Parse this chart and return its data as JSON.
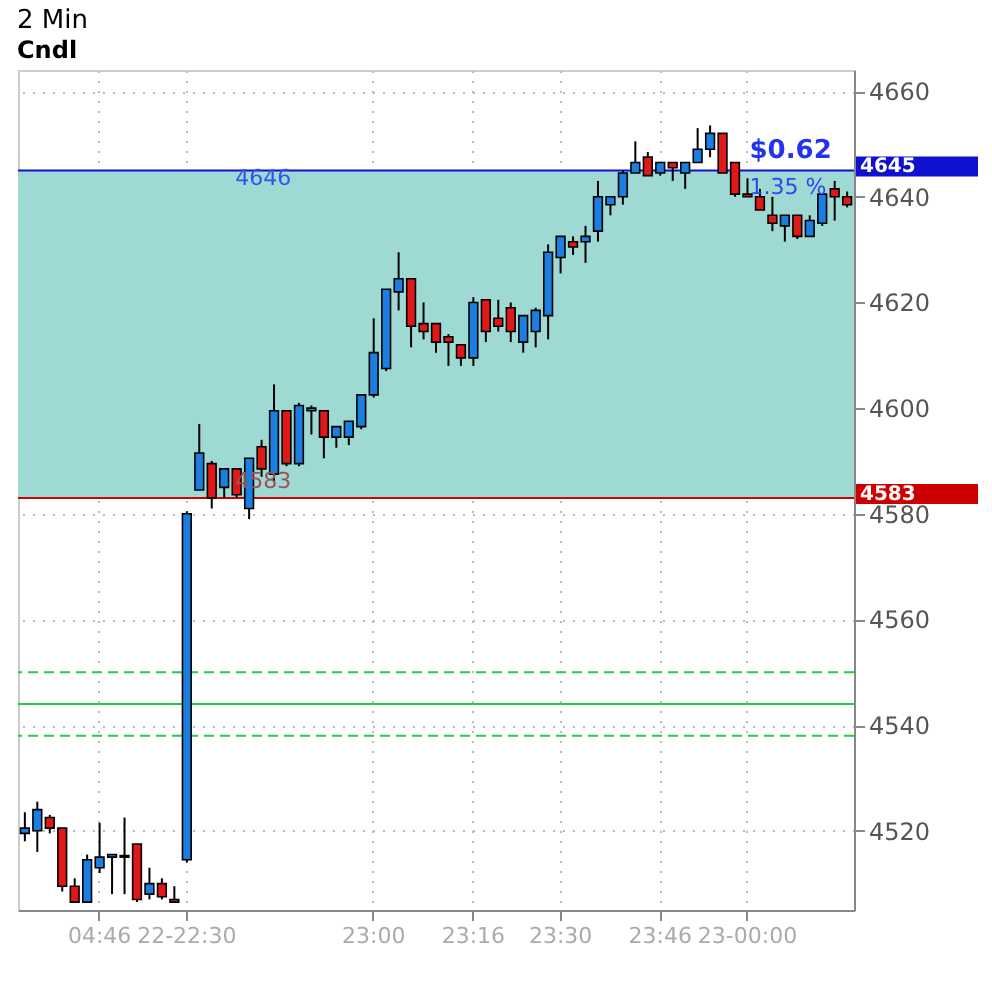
{
  "chart_data": {
    "type": "candlestick",
    "title": "2 Min",
    "subtitle": "Cndl",
    "categories": [
      null,
      null,
      null,
      null,
      null,
      null,
      "04:46",
      null,
      null,
      null,
      null,
      null,
      null,
      "22-22:30",
      null,
      null,
      null,
      null,
      null,
      null,
      null,
      null,
      null,
      null,
      null,
      null,
      null,
      null,
      "23:00",
      null,
      null,
      null,
      null,
      null,
      null,
      null,
      "23:16",
      null,
      null,
      null,
      null,
      null,
      null,
      "23:30",
      null,
      null,
      null,
      null,
      null,
      null,
      null,
      "23:46",
      null,
      null,
      null,
      null,
      null,
      null,
      "23-00:00",
      null,
      null,
      null,
      null,
      null,
      null,
      null,
      null
    ],
    "ohlc": [
      [
        4519.5,
        4523.5,
        4518,
        4520.5
      ],
      [
        4520,
        4525.5,
        4516,
        4524
      ],
      [
        4522.5,
        4523,
        4519.5,
        4520.5
      ],
      [
        4520.5,
        4520.5,
        4508.5,
        4509.5
      ],
      [
        4509.5,
        4511,
        4506.5,
        4506.5
      ],
      [
        4506.5,
        4515.5,
        4506.5,
        4514.5
      ],
      [
        4513,
        4521.5,
        4512,
        4515
      ],
      [
        4515,
        4515.5,
        4508,
        4515.5
      ],
      [
        4515,
        4522.5,
        4508,
        4515.3
      ],
      [
        4517.5,
        4517.5,
        4506.5,
        4507
      ],
      [
        4508,
        4513,
        4507,
        4510
      ],
      [
        4510,
        4511,
        4507,
        4507.5
      ],
      [
        4507,
        4509.5,
        4506.5,
        4506.5
      ],
      [
        4514.5,
        4580.5,
        4514,
        4580
      ],
      [
        4584.5,
        4597,
        4584.5,
        4591.5
      ],
      [
        4589.5,
        4590,
        4581,
        4583
      ],
      [
        4585,
        4588.5,
        4583,
        4588.5
      ],
      [
        4588.5,
        4588.5,
        4583,
        4583.6
      ],
      [
        4581,
        4590.5,
        4579,
        4590.5
      ],
      [
        4592.7,
        4594,
        4587,
        4588.5
      ],
      [
        4587.5,
        4604.5,
        4586,
        4599.5
      ],
      [
        4599.5,
        4599.5,
        4589,
        4589.5
      ],
      [
        4589.5,
        4601,
        4589,
        4600.5
      ],
      [
        4599.5,
        4600.5,
        4595,
        4600
      ],
      [
        4599.5,
        4599.5,
        4590.5,
        4594.5
      ],
      [
        4594.5,
        4596.5,
        4592.5,
        4596.5
      ],
      [
        4594.5,
        4597.5,
        4593,
        4597.5
      ],
      [
        4596.5,
        4602.5,
        4596,
        4602.5
      ],
      [
        4602.5,
        4617,
        4602,
        4610.5
      ],
      [
        4607.5,
        4622.5,
        4607,
        4622.5
      ],
      [
        4622,
        4629.5,
        4618.5,
        4624.5
      ],
      [
        4624.5,
        4624.5,
        4611.5,
        4615.5
      ],
      [
        4616,
        4620,
        4613,
        4614.5
      ],
      [
        4616,
        4616,
        4610.5,
        4612.5
      ],
      [
        4613.5,
        4614,
        4608,
        4612.5
      ],
      [
        4612,
        4612,
        4608,
        4609.5
      ],
      [
        4609.5,
        4621,
        4608,
        4620
      ],
      [
        4620.5,
        4620.5,
        4612.5,
        4614.5
      ],
      [
        4617,
        4620.5,
        4614.5,
        4615.5
      ],
      [
        4619,
        4620,
        4612.5,
        4614.5
      ],
      [
        4612.5,
        4617.5,
        4610.5,
        4617.5
      ],
      [
        4614.5,
        4619,
        4611.5,
        4618.5
      ],
      [
        4617.5,
        4631,
        4613,
        4629.5
      ],
      [
        4628.5,
        4632.5,
        4625.5,
        4632.5
      ],
      [
        4631.5,
        4632.5,
        4629,
        4630.5
      ],
      [
        4631.5,
        4634.5,
        4627.5,
        4632.5
      ],
      [
        4633.5,
        4643,
        4631.5,
        4640
      ],
      [
        4638.5,
        4640,
        4636.5,
        4640
      ],
      [
        4640,
        4645,
        4638.5,
        4644.5
      ],
      [
        4644.5,
        4650.5,
        4644.5,
        4646.5
      ],
      [
        4647.5,
        4648.5,
        4644,
        4644
      ],
      [
        4644.5,
        4646.5,
        4644,
        4646.5
      ],
      [
        4646.5,
        4646.5,
        4643,
        4645.5
      ],
      [
        4644.5,
        4646.5,
        4641.5,
        4646.5
      ],
      [
        4646.5,
        4653,
        4646.5,
        4649
      ],
      [
        4649,
        4653.5,
        4647.5,
        4652
      ],
      [
        4652,
        4652,
        4644.5,
        4644.5
      ],
      [
        4646.5,
        4646.5,
        4640,
        4640.5
      ],
      [
        4640.5,
        4643.5,
        4640,
        4640
      ],
      [
        4640,
        4641.5,
        4637.5,
        4637.5
      ],
      [
        4636.5,
        4640,
        4633.5,
        4635
      ],
      [
        4634.5,
        4636.5,
        4631.5,
        4636.5
      ],
      [
        4636.5,
        4636.5,
        4632,
        4632.5
      ],
      [
        4632.5,
        4636.5,
        4632.5,
        4635.5
      ],
      [
        4635,
        4640.5,
        4634.5,
        4640.5
      ],
      [
        4641.5,
        4643,
        4635.5,
        4640
      ],
      [
        4640,
        4641,
        4638,
        4638.5
      ]
    ],
    "ylim": [
      4505,
      4664
    ],
    "yticks": [
      4520,
      4540,
      4560,
      4580,
      4600,
      4620,
      4640,
      4660
    ],
    "grid": true,
    "bands": [
      {
        "axis": "y",
        "from": 4583,
        "to": 4645,
        "color": "#9fd9d4"
      }
    ],
    "ref_lines": [
      {
        "axis": "y",
        "value": 4645,
        "label": "4645",
        "color": "#1010d0",
        "line_style": "solid"
      },
      {
        "axis": "y",
        "value": 4583,
        "label": "4583",
        "color": "#cc0000",
        "line_style": "solid"
      },
      {
        "axis": "y",
        "value": 4550,
        "color": "#22cc44",
        "line_style": "dashed"
      },
      {
        "axis": "y",
        "value": 4544,
        "color": "#22cc44",
        "line_style": "solid"
      },
      {
        "axis": "y",
        "value": 4538,
        "color": "#22cc44",
        "line_style": "dashed"
      }
    ],
    "annotations": [
      "4646",
      "4583",
      "$0.62",
      "1.35 %"
    ]
  }
}
